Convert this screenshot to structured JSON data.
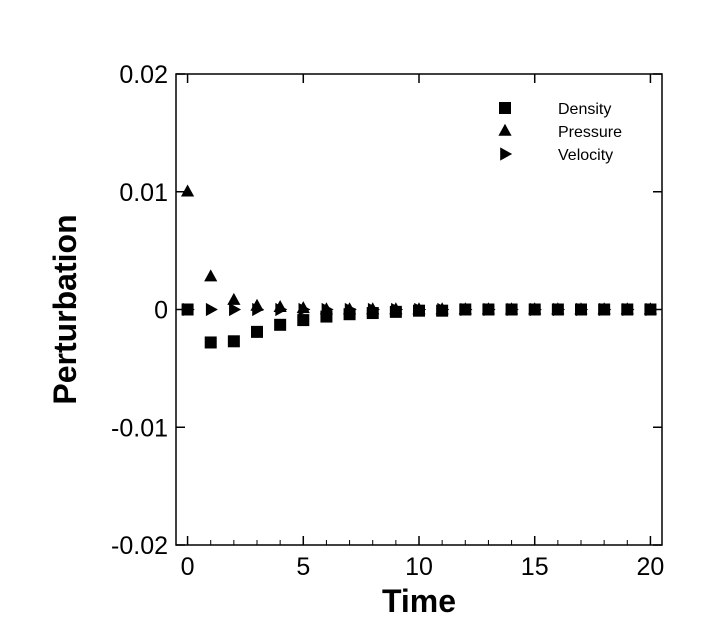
{
  "chart_data": {
    "type": "scatter",
    "xlabel": "Time",
    "ylabel": "Perturbation",
    "xlim": [
      -0.5,
      20.5
    ],
    "ylim": [
      -0.02,
      0.02
    ],
    "x_ticks": [
      0,
      5,
      10,
      15,
      20
    ],
    "x_tick_labels": [
      "0",
      "5",
      "10",
      "15",
      "20"
    ],
    "y_ticks": [
      -0.02,
      -0.01,
      0,
      0.01,
      0.02
    ],
    "y_tick_labels": [
      "-0.02",
      "-0.01",
      "0",
      "0.01",
      "0.02"
    ],
    "grid": false,
    "legend_position": "top-right",
    "x": [
      0,
      1,
      2,
      3,
      4,
      5,
      6,
      7,
      8,
      9,
      10,
      11,
      12,
      13,
      14,
      15,
      16,
      17,
      18,
      19,
      20
    ],
    "series": [
      {
        "name": "Density",
        "marker": "square",
        "values": [
          0,
          -0.0028,
          -0.0027,
          -0.0019,
          -0.0013,
          -0.0009,
          -0.0006,
          -0.0004,
          -0.0003,
          -0.0002,
          -0.0001,
          -0.0001,
          0,
          0,
          0,
          0,
          0,
          0,
          0,
          0,
          0
        ]
      },
      {
        "name": "Pressure",
        "marker": "triangle-up",
        "values": [
          0.01,
          0.0028,
          0.0008,
          0.0003,
          0.0002,
          0.0001,
          0,
          0,
          0,
          0,
          0,
          0,
          0,
          0,
          0,
          0,
          0,
          0,
          0,
          0,
          0
        ]
      },
      {
        "name": "Velocity",
        "marker": "triangle-right",
        "values": [
          0,
          0,
          0,
          0,
          0,
          0,
          0,
          0,
          0,
          0,
          0,
          0,
          0,
          0,
          0,
          0,
          0,
          0,
          0,
          0,
          0
        ]
      }
    ],
    "marker_color": "#000000"
  }
}
